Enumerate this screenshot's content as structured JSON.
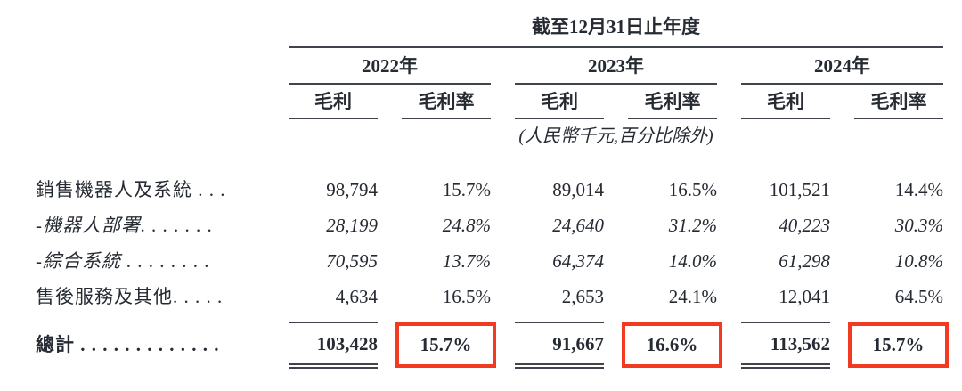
{
  "colors": {
    "text": "#262b33",
    "rule": "#3e434c",
    "highlight": "#f23a22"
  },
  "table": {
    "title": "截至12月31日止年度",
    "unit_note": "(人民幣千元,百分比除外)",
    "years": [
      "2022年",
      "2023年",
      "2024年"
    ],
    "subheaders": [
      "毛利",
      "毛利率"
    ],
    "rows": [
      {
        "label": "銷售機器人及系統 . . .",
        "values": [
          "98,794",
          "15.7%",
          "89,014",
          "16.5%",
          "101,521",
          "14.4%"
        ]
      },
      {
        "label": "-機器人部署. . . . . . .",
        "values": [
          "28,199",
          "24.8%",
          "24,640",
          "31.2%",
          "40,223",
          "30.3%"
        ]
      },
      {
        "label": "-綜合系統 . . . . . . . .",
        "values": [
          "70,595",
          "13.7%",
          "64,374",
          "14.0%",
          "61,298",
          "10.8%"
        ]
      },
      {
        "label": "售後服務及其他. . . . .",
        "values": [
          "4,634",
          "16.5%",
          "2,653",
          "24.1%",
          "12,041",
          "64.5%"
        ]
      }
    ],
    "total": {
      "label": "總計 . . . . . . . . . . . . .",
      "values": [
        "103,428",
        "15.7%",
        "91,667",
        "16.6%",
        "113,562",
        "15.7%"
      ]
    }
  }
}
